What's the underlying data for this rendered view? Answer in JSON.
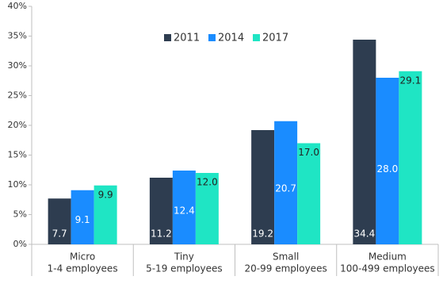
{
  "chart_data": {
    "type": "bar",
    "categories": [
      [
        "Micro",
        "1-4 employees"
      ],
      [
        "Tiny",
        "5-19 employees"
      ],
      [
        "Small",
        "20-99 employees"
      ],
      [
        "Medium",
        "100-499 employees"
      ]
    ],
    "series": [
      {
        "name": "2011",
        "color": "#2e3d50",
        "values": [
          7.7,
          11.2,
          19.2,
          34.4
        ],
        "value_labels": [
          "7.7",
          "11.2",
          "19.2",
          "34.4"
        ]
      },
      {
        "name": "2014",
        "color": "#1a8cff",
        "values": [
          9.1,
          12.4,
          20.7,
          28.0
        ],
        "value_labels": [
          "9.1",
          "12.4",
          "20.7",
          "28.0"
        ]
      },
      {
        "name": "2017",
        "color": "#1fe5c4",
        "values": [
          9.9,
          12.0,
          17.0,
          29.1
        ],
        "value_labels": [
          "9.9",
          "12.0",
          "17.0",
          "29.1"
        ]
      }
    ],
    "ylim": [
      0,
      40
    ],
    "yticks": [
      {
        "value": 0,
        "label": "0%"
      },
      {
        "value": 5,
        "label": "5%"
      },
      {
        "value": 10,
        "label": "10%"
      },
      {
        "value": 15,
        "label": "15%"
      },
      {
        "value": 20,
        "label": "20%"
      },
      {
        "value": 25,
        "label": "25%"
      },
      {
        "value": 30,
        "label": "30%"
      },
      {
        "value": 35,
        "label": "35%"
      },
      {
        "value": 40,
        "label": "40%"
      }
    ],
    "grid": false,
    "legend": "top"
  }
}
